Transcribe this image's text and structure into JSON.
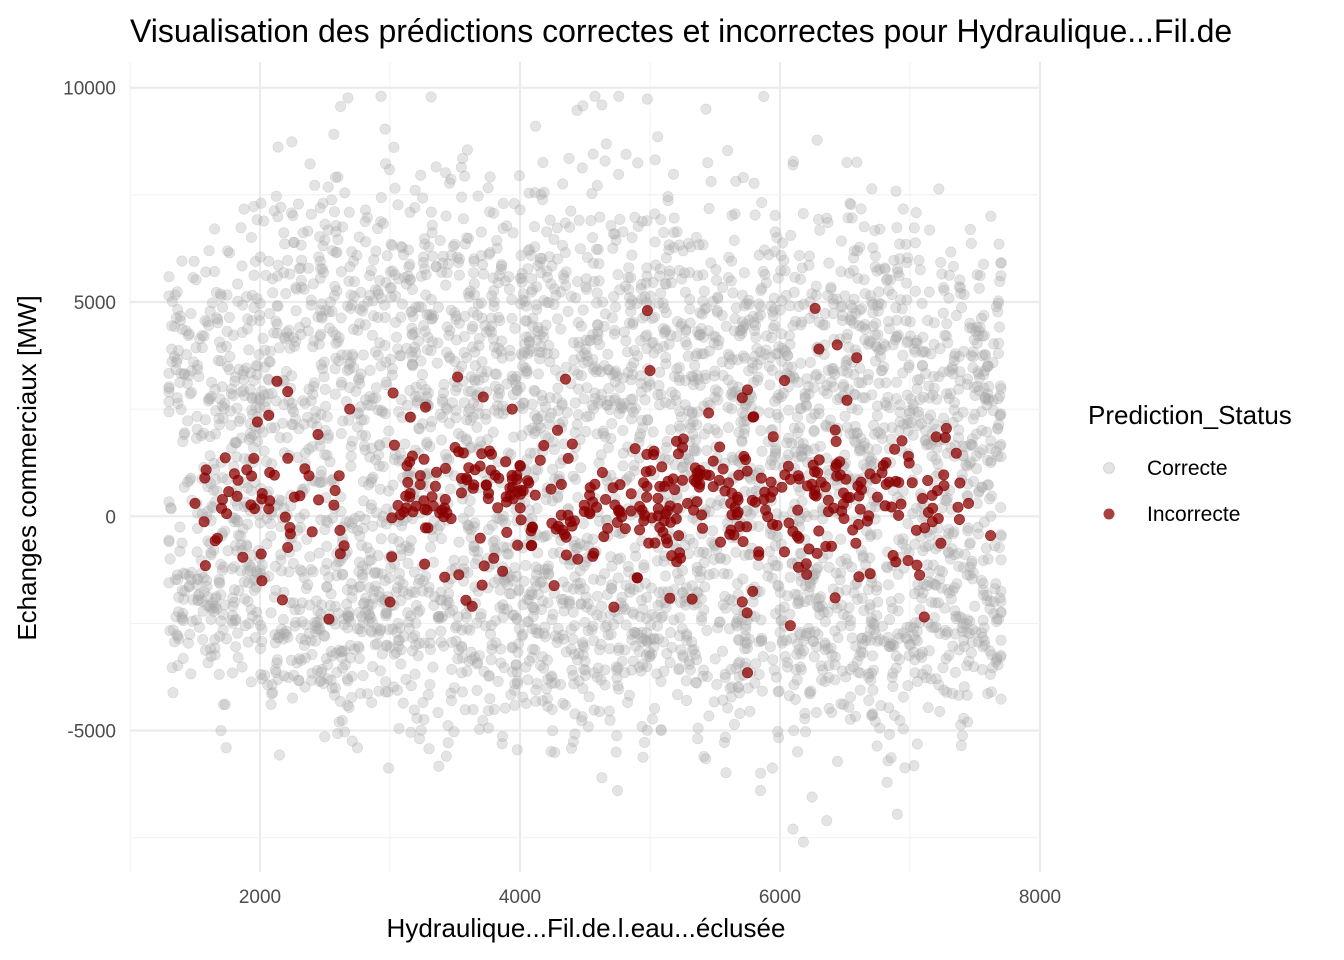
{
  "chart_data": {
    "type": "scatter",
    "title": "Visualisation des prédictions correctes et incorrectes pour Hydraulique...Fil.de",
    "xlabel": "Hydraulique...Fil.de.l.eau...éclusée",
    "ylabel": "Echanges commerciaux [MW]",
    "xlim": [
      1000,
      8000
    ],
    "ylim": [
      -8300,
      10600
    ],
    "x_ticks": [
      2000,
      4000,
      6000,
      8000
    ],
    "x_tick_labels": [
      "2000",
      "4000",
      "6000",
      "8000"
    ],
    "y_ticks": [
      -5000,
      0,
      5000,
      10000
    ],
    "y_tick_labels": [
      "-5000",
      "0",
      "5000",
      "10000"
    ],
    "grid": true,
    "legend": {
      "title": "Prediction_Status",
      "placement": "right"
    },
    "series": [
      {
        "name": "Correcte",
        "color": "#a6a6a6",
        "opacity": 0.3,
        "generated": true,
        "count": 4200,
        "x_range": [
          1300,
          7700
        ],
        "y_range": [
          -7600,
          9800
        ],
        "notable_points": [
          {
            "x": 4760,
            "y": 9800
          },
          {
            "x": 4630,
            "y": 9600
          },
          {
            "x": 5430,
            "y": 9500
          },
          {
            "x": 6100,
            "y": 8200
          },
          {
            "x": 1490,
            "y": 3600
          },
          {
            "x": 1320,
            "y": 3900
          },
          {
            "x": 7540,
            "y": 4400
          },
          {
            "x": 7680,
            "y": 3800
          },
          {
            "x": 1400,
            "y": -2400
          },
          {
            "x": 1700,
            "y": -5000
          },
          {
            "x": 1740,
            "y": -5400
          },
          {
            "x": 4750,
            "y": -6400
          },
          {
            "x": 4630,
            "y": -6100
          },
          {
            "x": 5850,
            "y": -6400
          },
          {
            "x": 6100,
            "y": -7300
          },
          {
            "x": 6180,
            "y": -7600
          },
          {
            "x": 6360,
            "y": -7100
          },
          {
            "x": 7570,
            "y": -2600
          },
          {
            "x": 7400,
            "y": -2600
          }
        ]
      },
      {
        "name": "Incorrecte",
        "color": "#8b0000",
        "opacity": 0.75,
        "generated": true,
        "count": 420,
        "x_range": [
          1500,
          7600
        ],
        "y_range": [
          -3600,
          4800
        ],
        "notable_points": [
          {
            "x": 4980,
            "y": 4800
          },
          {
            "x": 6270,
            "y": 4850
          },
          {
            "x": 6300,
            "y": 3900
          },
          {
            "x": 6440,
            "y": 4000
          },
          {
            "x": 6590,
            "y": 3700
          },
          {
            "x": 2130,
            "y": 3150
          },
          {
            "x": 3520,
            "y": 3250
          },
          {
            "x": 4350,
            "y": 3200
          },
          {
            "x": 5000,
            "y": 3400
          },
          {
            "x": 5750,
            "y": 2950
          },
          {
            "x": 2690,
            "y": 2500
          },
          {
            "x": 1980,
            "y": 2200
          },
          {
            "x": 1500,
            "y": 300
          },
          {
            "x": 1580,
            "y": -1150
          },
          {
            "x": 7450,
            "y": 300
          },
          {
            "x": 7620,
            "y": -450
          },
          {
            "x": 7280,
            "y": 2050
          },
          {
            "x": 7110,
            "y": -2350
          },
          {
            "x": 5750,
            "y": -3650
          },
          {
            "x": 6080,
            "y": -2550
          },
          {
            "x": 2530,
            "y": -2400
          },
          {
            "x": 3000,
            "y": -2000
          }
        ]
      }
    ]
  }
}
